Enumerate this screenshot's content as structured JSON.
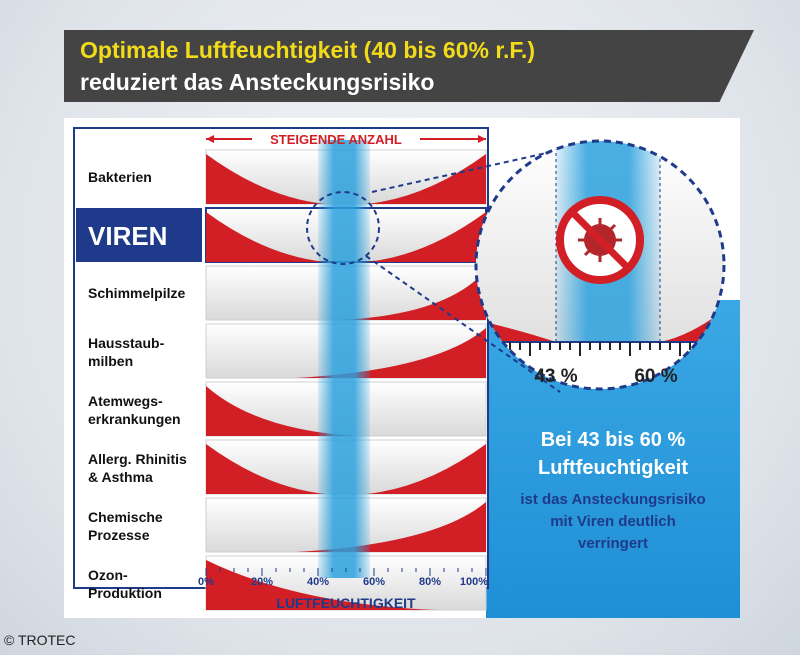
{
  "title": {
    "line1": "Optimale Luftfeuchtigkeit (40 bis 60% r.F.)",
    "line2": "reduziert das Ansteckungsrisiko"
  },
  "chart": {
    "top_label": "STEIGENDE ANZAHL",
    "x_axis_label": "LUFTFEUCHTIGKEIT",
    "ticks": [
      "0%",
      "20%",
      "40%",
      "60%",
      "80%",
      "100%"
    ],
    "rows": [
      {
        "label1": "Bakterien",
        "label2": "",
        "highlight": false,
        "curve": "both-high"
      },
      {
        "label1": "VIREN",
        "label2": "",
        "highlight": true,
        "curve": "both-high"
      },
      {
        "label1": "Schimmelpilze",
        "label2": "",
        "highlight": false,
        "curve": "rise-right-late"
      },
      {
        "label1": "Hausstaub-",
        "label2": "milben",
        "highlight": false,
        "curve": "rise-right"
      },
      {
        "label1": "Atemwegs-",
        "label2": "erkrankungen",
        "highlight": false,
        "curve": "fall-left"
      },
      {
        "label1": "Allerg. Rhinitis",
        "label2": "& Asthma",
        "highlight": false,
        "curve": "both-high"
      },
      {
        "label1": "Chemische",
        "label2": "Prozesse",
        "highlight": false,
        "curve": "rise-right"
      },
      {
        "label1": "Ozon-",
        "label2": "Produktion",
        "highlight": false,
        "curve": "fall-left-long"
      }
    ],
    "optimal_band": {
      "from": 40,
      "to": 60
    }
  },
  "zoom": {
    "tick_a": "43 %",
    "tick_b": "60 %"
  },
  "callout": {
    "line1": "Bei 43 bis 60 %",
    "line2": "Luftfeuchtigkeit",
    "line3": "ist das Ansteckungsrisiko",
    "line4": "mit Viren deutlich",
    "line5": "verringert"
  },
  "credit": "© TROTEC",
  "colors": {
    "red": "#d21f26",
    "blue": "#2aa0dd",
    "navy": "#1f3a8a",
    "yellow": "#f2dc1a",
    "dark": "#444444"
  }
}
